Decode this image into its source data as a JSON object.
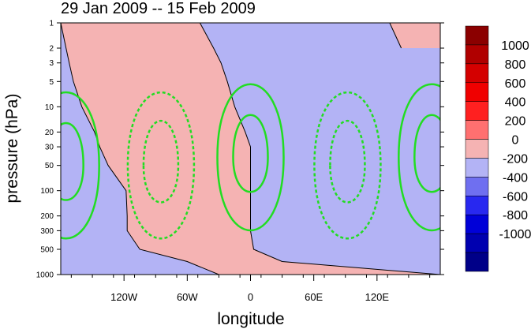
{
  "chart_data": {
    "type": "heatmap",
    "title": "29 Jan 2009 -- 15 Feb 2009",
    "xlabel": "longitude",
    "ylabel": "pressure (hPa)",
    "xlim": [
      -180,
      180
    ],
    "ylim": [
      1000,
      1
    ],
    "yscale": "log",
    "x_ticks": [
      {
        "value": -120,
        "label": "120W"
      },
      {
        "value": -60,
        "label": "60W"
      },
      {
        "value": 0,
        "label": "0"
      },
      {
        "value": 60,
        "label": "60E"
      },
      {
        "value": 120,
        "label": "120E"
      }
    ],
    "y_ticks": [
      1,
      2,
      3,
      5,
      10,
      20,
      30,
      50,
      100,
      200,
      300,
      500,
      1000
    ],
    "shaded_field": {
      "description": "zonal-anomaly sign with westward-tilting phase boundaries",
      "fill_positive": "#f5b3b3",
      "fill_negative": "#b3b3f5",
      "boundaries_lon_at_p": {
        "p": [
          1,
          2,
          3,
          5,
          10,
          20,
          30,
          50,
          100,
          200,
          300,
          500,
          700,
          1000
        ],
        "boundary_1": [
          -48,
          -35,
          -28,
          -22,
          -15,
          -5,
          0,
          0,
          0,
          0,
          0,
          3,
          30,
          180
        ],
        "boundary_2": [
          132,
          143,
          152,
          160,
          170,
          180,
          180,
          180,
          180,
          180,
          180,
          180,
          180,
          180
        ]
      },
      "western_boundary": [
        -180,
        -175,
        -172,
        -168,
        -160,
        -148,
        -143,
        -135,
        -118,
        -117,
        -117,
        -105,
        -60,
        -30
      ]
    },
    "contours": {
      "color": "#22dd22",
      "solid_centers": [
        {
          "lon": -175,
          "p": 50
        },
        {
          "lon": 0,
          "p": 40
        },
        {
          "lon": 172,
          "p": 40
        }
      ],
      "dashed_centers": [
        {
          "lon": -85,
          "p": 50
        },
        {
          "lon": 92,
          "p": 50
        }
      ]
    },
    "colorbar": {
      "labels": [
        "1000",
        "800",
        "600",
        "400",
        "200",
        "0",
        "-200",
        "-400",
        "-600",
        "-800",
        "-1000"
      ],
      "colors": [
        "#8b0000",
        "#b00000",
        "#d40000",
        "#f00000",
        "#ff2020",
        "#ff7070",
        "#f5b3b3",
        "#b3b3f5",
        "#6f6ff0",
        "#2828f0",
        "#0000d8",
        "#0000b0",
        "#000088"
      ]
    }
  }
}
